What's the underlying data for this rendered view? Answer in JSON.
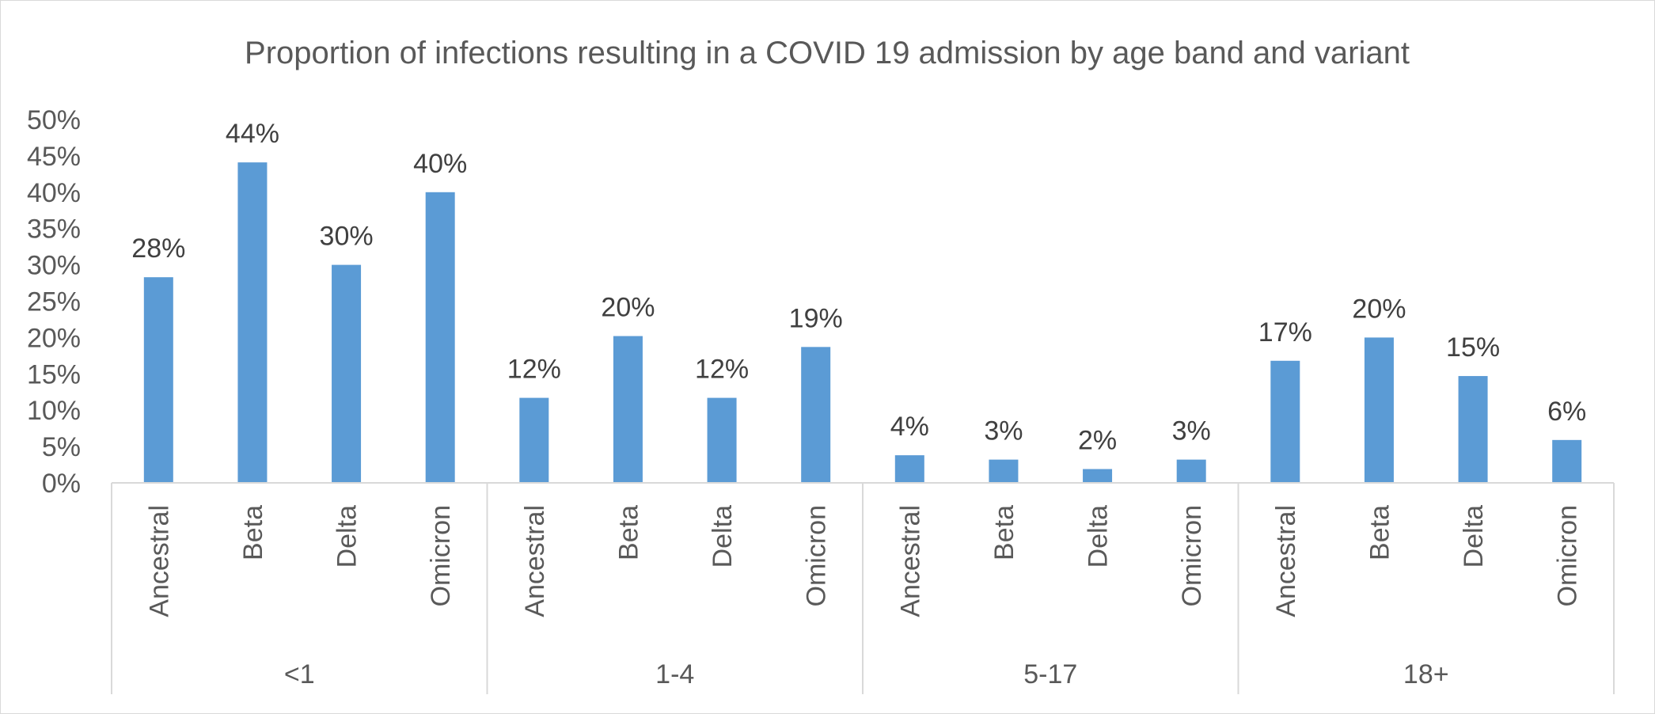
{
  "chart_data": {
    "type": "bar",
    "title": "Proportion of infections resulting in a COVID 19 admission by age band and variant",
    "xlabel": "",
    "ylabel": "",
    "ylim": [
      0,
      0.5
    ],
    "y_ticks": [
      "0%",
      "5%",
      "10%",
      "15%",
      "20%",
      "25%",
      "30%",
      "35%",
      "40%",
      "45%",
      "50%"
    ],
    "grid": false,
    "legend": "none",
    "bar_color": "#5b9bd5",
    "groups": [
      {
        "label": "<1",
        "categories": [
          "Ancestral",
          "Beta",
          "Delta",
          "Omicron"
        ],
        "values": [
          0.283,
          0.441,
          0.3,
          0.4
        ],
        "data_labels": [
          "28%",
          "44%",
          "30%",
          "40%"
        ]
      },
      {
        "label": "1-4",
        "categories": [
          "Ancestral",
          "Beta",
          "Delta",
          "Omicron"
        ],
        "values": [
          0.117,
          0.202,
          0.117,
          0.187
        ],
        "data_labels": [
          "12%",
          "20%",
          "12%",
          "19%"
        ]
      },
      {
        "label": "5-17",
        "categories": [
          "Ancestral",
          "Beta",
          "Delta",
          "Omicron"
        ],
        "values": [
          0.038,
          0.032,
          0.019,
          0.032
        ],
        "data_labels": [
          "4%",
          "3%",
          "2%",
          "3%"
        ]
      },
      {
        "label": "18+",
        "categories": [
          "Ancestral",
          "Beta",
          "Delta",
          "Omicron"
        ],
        "values": [
          0.168,
          0.2,
          0.147,
          0.059
        ],
        "data_labels": [
          "17%",
          "20%",
          "15%",
          "6%"
        ]
      }
    ]
  }
}
